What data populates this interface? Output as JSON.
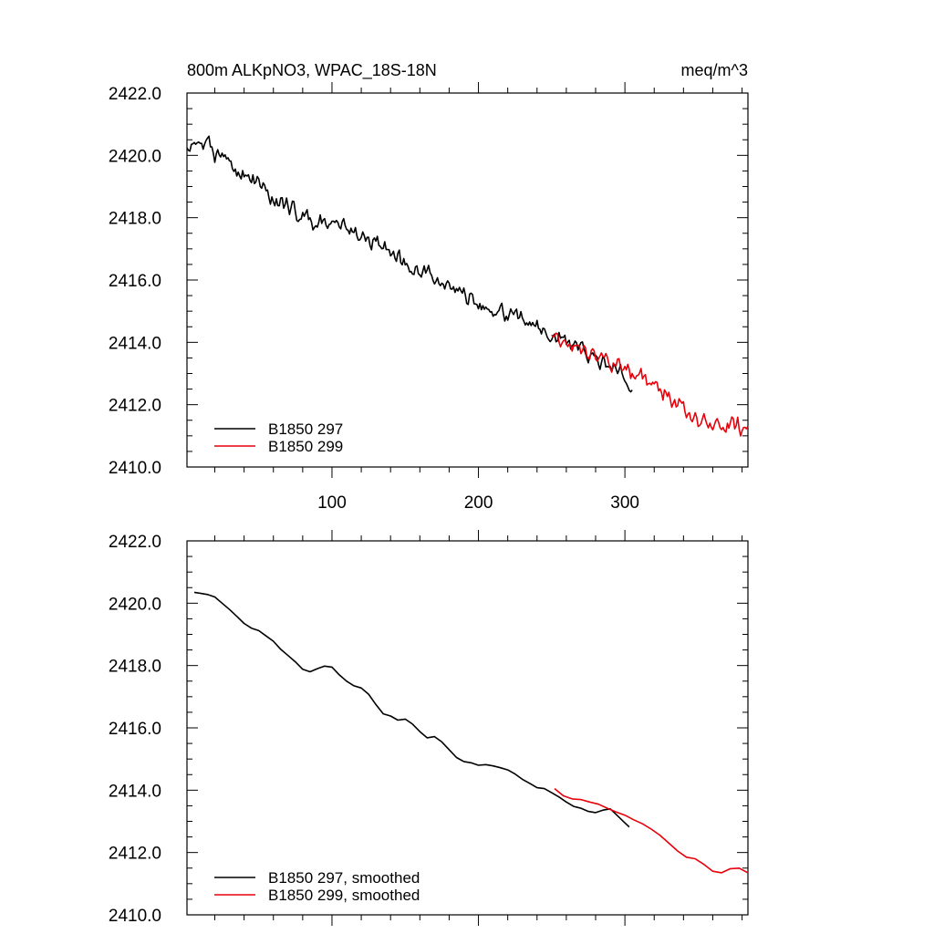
{
  "page": {
    "title": "800m ALKpNO3, WPAC_18S-18N",
    "units": "meq/m^3"
  },
  "chart_data": [
    {
      "type": "line",
      "title": "800m ALKpNO3, WPAC_18S-18N",
      "units_label": "meq/m^3",
      "xlabel": "",
      "ylabel": "",
      "xlim": [
        1,
        384
      ],
      "ylim": [
        2410,
        2422
      ],
      "x_ticks": [
        100,
        200,
        300
      ],
      "x_tick_labels": [
        "100",
        "200",
        "300"
      ],
      "y_ticks": [
        2410,
        2412,
        2414,
        2416,
        2418,
        2420,
        2422
      ],
      "y_tick_labels": [
        "2410.0",
        "2412.0",
        "2414.0",
        "2416.0",
        "2418.0",
        "2420.0",
        "2422.0"
      ],
      "grid": false,
      "legend_position": "bottom-left",
      "series": [
        {
          "name": "B1850 297",
          "color": "#000000",
          "x_start": 1,
          "x_end": 305,
          "trend_x": [
            1,
            5,
            10,
            15,
            20,
            30,
            40,
            50,
            60,
            70,
            80,
            90,
            100,
            110,
            120,
            130,
            140,
            150,
            160,
            170,
            180,
            190,
            200,
            210,
            220,
            230,
            240,
            250,
            260,
            270,
            280,
            290,
            300,
            305
          ],
          "trend_y": [
            2420.3,
            2420.4,
            2420.3,
            2420.4,
            2420.1,
            2419.7,
            2419.4,
            2419.1,
            2418.6,
            2418.3,
            2418.1,
            2417.8,
            2418.0,
            2417.7,
            2417.4,
            2417.2,
            2416.9,
            2416.5,
            2416.4,
            2416.1,
            2415.9,
            2415.6,
            2415.2,
            2415.0,
            2414.9,
            2414.8,
            2414.5,
            2414.2,
            2414.0,
            2413.8,
            2413.5,
            2413.3,
            2412.9,
            2412.7
          ],
          "noise_amplitude": 0.35,
          "noise_seed": 297
        },
        {
          "name": "B1850 299",
          "color": "#e8000b",
          "x_start": 250,
          "x_end": 384,
          "trend_x": [
            250,
            260,
            270,
            280,
            290,
            300,
            310,
            320,
            330,
            340,
            350,
            360,
            370,
            384
          ],
          "trend_y": [
            2414.3,
            2413.9,
            2413.7,
            2413.6,
            2413.3,
            2413.2,
            2413.0,
            2412.6,
            2412.3,
            2411.9,
            2411.5,
            2411.3,
            2411.4,
            2411.2
          ],
          "noise_amplitude": 0.35,
          "noise_seed": 299
        }
      ]
    },
    {
      "type": "line",
      "title": "",
      "xlabel": "",
      "ylabel": "",
      "xlim": [
        1,
        384
      ],
      "ylim": [
        2410,
        2422
      ],
      "x_ticks": [
        100,
        200,
        300
      ],
      "x_tick_labels": [],
      "y_ticks": [
        2410,
        2412,
        2414,
        2416,
        2418,
        2420,
        2422
      ],
      "y_tick_labels": [
        "2410.0",
        "2412.0",
        "2414.0",
        "2416.0",
        "2418.0",
        "2420.0",
        "2422.0"
      ],
      "grid": false,
      "legend_position": "bottom-left",
      "series": [
        {
          "name": "B1850 297, smoothed",
          "color": "#000000",
          "x": [
            6,
            10,
            15,
            20,
            25,
            30,
            35,
            40,
            45,
            50,
            55,
            60,
            65,
            70,
            75,
            80,
            85,
            90,
            95,
            100,
            105,
            110,
            115,
            120,
            125,
            130,
            135,
            140,
            145,
            150,
            155,
            160,
            165,
            170,
            175,
            180,
            185,
            190,
            195,
            200,
            205,
            210,
            215,
            220,
            225,
            230,
            235,
            240,
            245,
            250,
            255,
            260,
            265,
            270,
            275,
            280,
            285,
            290,
            295,
            300,
            303
          ],
          "y": [
            2420.35,
            2420.32,
            2420.28,
            2420.2,
            2420.0,
            2419.8,
            2419.58,
            2419.35,
            2419.2,
            2419.12,
            2418.95,
            2418.78,
            2418.52,
            2418.32,
            2418.12,
            2417.88,
            2417.8,
            2417.9,
            2417.98,
            2417.95,
            2417.7,
            2417.5,
            2417.35,
            2417.28,
            2417.08,
            2416.75,
            2416.45,
            2416.38,
            2416.25,
            2416.28,
            2416.12,
            2415.88,
            2415.68,
            2415.72,
            2415.55,
            2415.3,
            2415.05,
            2414.92,
            2414.88,
            2414.8,
            2414.82,
            2414.78,
            2414.72,
            2414.65,
            2414.52,
            2414.35,
            2414.22,
            2414.08,
            2414.05,
            2413.92,
            2413.78,
            2413.62,
            2413.48,
            2413.42,
            2413.32,
            2413.28,
            2413.36,
            2413.4,
            2413.18,
            2412.95,
            2412.82
          ]
        },
        {
          "name": "B1850 299, smoothed",
          "color": "#e8000b",
          "x": [
            252,
            258,
            264,
            270,
            276,
            282,
            288,
            294,
            300,
            306,
            312,
            318,
            324,
            330,
            336,
            342,
            348,
            354,
            360,
            366,
            372,
            378,
            384
          ],
          "y": [
            2414.05,
            2413.82,
            2413.72,
            2413.7,
            2413.62,
            2413.55,
            2413.42,
            2413.3,
            2413.2,
            2413.05,
            2412.92,
            2412.75,
            2412.55,
            2412.3,
            2412.05,
            2411.85,
            2411.8,
            2411.62,
            2411.4,
            2411.35,
            2411.48,
            2411.5,
            2411.35
          ]
        }
      ]
    }
  ]
}
